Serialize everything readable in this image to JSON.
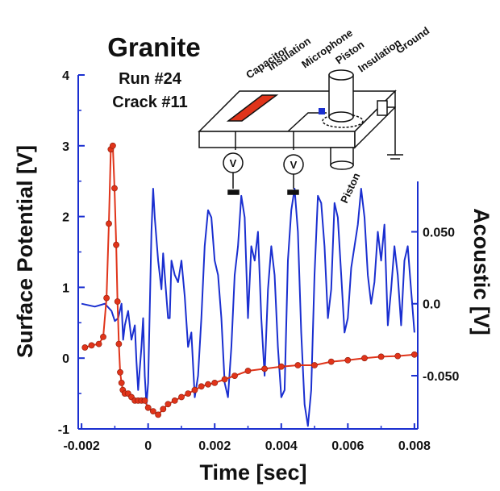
{
  "chart_data": {
    "type": "line",
    "title": "Granite",
    "subtitle_lines": [
      "Run #24",
      "Crack #11"
    ],
    "xlabel": "Time [sec]",
    "ylabel": "Surface Potential [V]",
    "y2label": "Acoustic [V]",
    "xlim": [
      -0.0021,
      0.0081
    ],
    "ylim": [
      -1,
      4
    ],
    "y2lim": [
      -0.087,
      0.159
    ],
    "x_ticks": [
      "-0.002",
      "0",
      "0.002",
      "0.004",
      "0.006",
      "0.008"
    ],
    "y_ticks": [
      "-1",
      "0",
      "1",
      "2",
      "3",
      "4"
    ],
    "y2_ticks": [
      "-0.050",
      "0.0",
      "0.050"
    ],
    "inset_labels": [
      "Capacitor",
      "Insulation",
      "Microphone",
      "Piston",
      "Insulation",
      "Ground",
      "Piston",
      "V",
      "V"
    ],
    "series": [
      {
        "color": "#e0341a",
        "axis": "left",
        "markers": true,
        "x": [
          -0.0019,
          -0.0017,
          -0.00148,
          -0.00135,
          -0.00125,
          -0.00118,
          -0.00112,
          -0.00106,
          -0.00101,
          -0.00096,
          -0.00092,
          -0.00088,
          -0.00084,
          -0.0008,
          -0.00076,
          -0.0007,
          -0.0006,
          -0.0005,
          -0.0004,
          -0.0003,
          -0.0002,
          -0.0001,
          0.0,
          0.00015,
          0.0003,
          0.00045,
          0.0006,
          0.0008,
          0.001,
          0.0012,
          0.0014,
          0.0016,
          0.0018,
          0.002,
          0.0023,
          0.0026,
          0.003,
          0.0035,
          0.004,
          0.0045,
          0.005,
          0.0055,
          0.006,
          0.0065,
          0.007,
          0.0075,
          0.008
        ],
        "y": [
          0.15,
          0.18,
          0.2,
          0.3,
          0.85,
          1.9,
          2.95,
          3.0,
          2.4,
          1.6,
          0.8,
          0.2,
          -0.2,
          -0.35,
          -0.45,
          -0.5,
          -0.5,
          -0.55,
          -0.6,
          -0.6,
          -0.6,
          -0.6,
          -0.7,
          -0.75,
          -0.8,
          -0.72,
          -0.65,
          -0.6,
          -0.55,
          -0.5,
          -0.45,
          -0.4,
          -0.37,
          -0.35,
          -0.3,
          -0.25,
          -0.18,
          -0.15,
          -0.12,
          -0.1,
          -0.1,
          -0.05,
          -0.03,
          0.0,
          0.02,
          0.03,
          0.05
        ]
      },
      {
        "color": "#1a2fd0",
        "axis": "right",
        "markers": false,
        "x": [
          -0.002,
          -0.0016,
          -0.0013,
          -0.0011,
          -0.001,
          -0.0009,
          -0.0008,
          -0.00075,
          -0.0007,
          -0.00065,
          -0.0006,
          -0.0005,
          -0.0004,
          -0.00035,
          -0.0003,
          -0.0002,
          -0.00015,
          -0.0001,
          -5e-05,
          0.0,
          0.0001,
          0.00015,
          0.0002,
          0.0003,
          0.0004,
          0.00045,
          0.0005,
          0.0006,
          0.00065,
          0.0007,
          0.0008,
          0.0009,
          0.001,
          0.0011,
          0.0012,
          0.0013,
          0.0014,
          0.0015,
          0.0016,
          0.0017,
          0.0018,
          0.0019,
          0.002,
          0.0021,
          0.0022,
          0.0023,
          0.0024,
          0.0025,
          0.0026,
          0.0027,
          0.0028,
          0.0029,
          0.003,
          0.0031,
          0.0032,
          0.0033,
          0.0034,
          0.0035,
          0.0036,
          0.0037,
          0.0038,
          0.0039,
          0.004,
          0.0041,
          0.0042,
          0.0043,
          0.0044,
          0.0045,
          0.0046,
          0.0047,
          0.0048,
          0.0049,
          0.005,
          0.0051,
          0.0052,
          0.0053,
          0.0054,
          0.0055,
          0.0056,
          0.0057,
          0.0058,
          0.0059,
          0.006,
          0.0061,
          0.0062,
          0.0063,
          0.0064,
          0.0065,
          0.0066,
          0.0067,
          0.0068,
          0.0069,
          0.007,
          0.0071,
          0.0072,
          0.0073,
          0.0074,
          0.0075,
          0.0076,
          0.0077,
          0.0078,
          0.0079,
          0.008
        ],
        "y": [
          0.0,
          -0.002,
          0.0,
          -0.005,
          -0.012,
          -0.01,
          0.0,
          -0.025,
          -0.015,
          -0.01,
          -0.005,
          -0.025,
          -0.015,
          -0.04,
          -0.06,
          -0.03,
          -0.01,
          -0.05,
          -0.07,
          -0.055,
          0.05,
          0.08,
          0.06,
          0.03,
          0.01,
          0.035,
          0.02,
          -0.01,
          -0.01,
          0.03,
          0.02,
          0.015,
          0.03,
          0.005,
          -0.03,
          -0.02,
          -0.065,
          -0.05,
          -0.01,
          0.04,
          0.065,
          0.06,
          0.03,
          0.02,
          -0.01,
          -0.055,
          -0.065,
          -0.03,
          0.02,
          0.04,
          0.075,
          0.06,
          -0.01,
          0.04,
          0.03,
          0.05,
          -0.01,
          -0.05,
          0.01,
          0.04,
          0.02,
          -0.03,
          -0.065,
          -0.06,
          0.03,
          0.065,
          0.08,
          0.05,
          -0.02,
          -0.07,
          -0.085,
          -0.06,
          0.02,
          0.075,
          0.07,
          0.04,
          -0.01,
          0.01,
          0.07,
          0.06,
          0.02,
          -0.02,
          -0.01,
          0.025,
          0.04,
          0.055,
          0.08,
          0.06,
          0.02,
          0.0,
          0.015,
          0.05,
          0.03,
          0.055,
          -0.015,
          0.01,
          0.04,
          0.02,
          -0.015,
          0.03,
          0.04,
          0.01,
          -0.02
        ]
      }
    ]
  }
}
